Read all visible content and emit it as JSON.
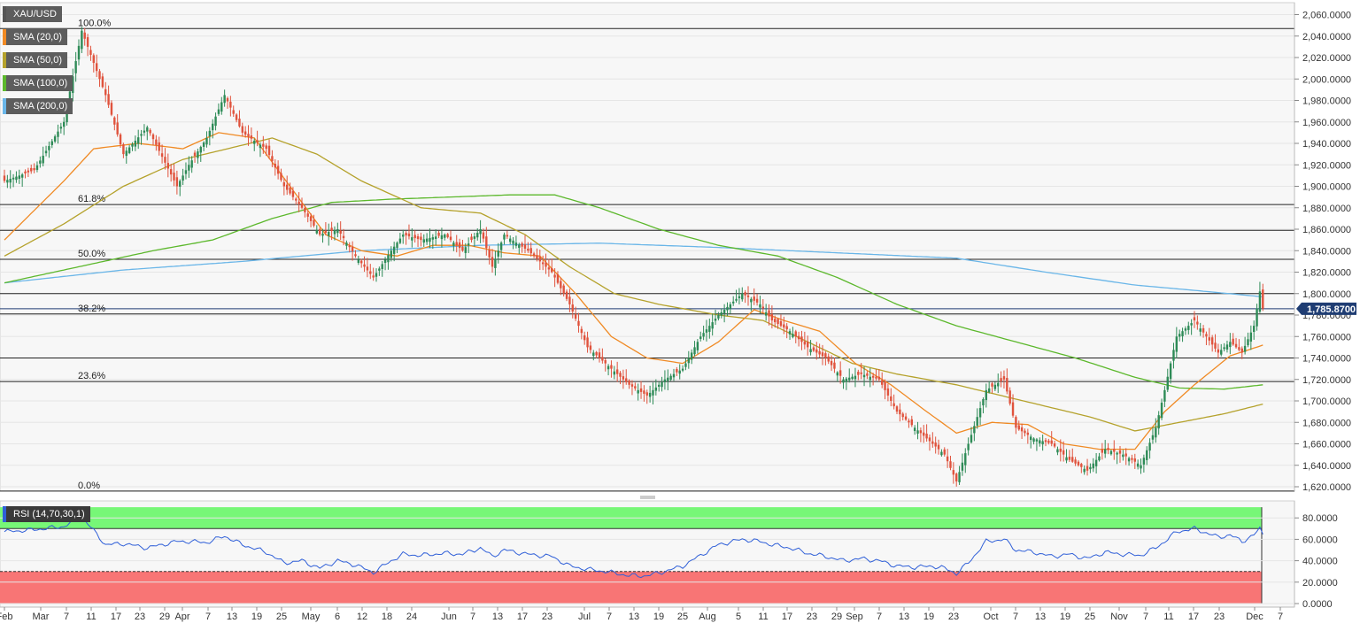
{
  "chart_data": {
    "type": "candlestick",
    "instrument": "XAU/USD",
    "legend": [
      "XAU/USD",
      "SMA (20,0)",
      "SMA (50,0)",
      "SMA (100,0)",
      "SMA (200,0)"
    ],
    "last_price_label": "1,785.8700",
    "last_price": 1785.87,
    "ylim": [
      1610,
      2070
    ],
    "y_ticks": [
      "2,060.0000",
      "2,040.0000",
      "2,020.0000",
      "2,000.0000",
      "1,980.0000",
      "1,960.0000",
      "1,940.0000",
      "1,920.0000",
      "1,900.0000",
      "1,880.0000",
      "1,860.0000",
      "1,840.0000",
      "1,820.0000",
      "1,800.0000",
      "1,780.0000",
      "1,760.0000",
      "1,740.0000",
      "1,720.0000",
      "1,700.0000",
      "1,680.0000",
      "1,660.0000",
      "1,640.0000",
      "1,620.0000"
    ],
    "x_ticks": [
      "Feb",
      "Mar",
      "7",
      "11",
      "17",
      "23",
      "29",
      "Apr",
      "7",
      "13",
      "19",
      "25",
      "May",
      "6",
      "12",
      "18",
      "24",
      "Jun",
      "7",
      "13",
      "17",
      "23",
      "Jul",
      "7",
      "13",
      "19",
      "25",
      "Aug",
      "5",
      "11",
      "17",
      "23",
      "29",
      "Sep",
      "7",
      "13",
      "19",
      "23",
      "Oct",
      "7",
      "13",
      "19",
      "25",
      "Nov",
      "7",
      "11",
      "17",
      "23",
      "Dec",
      "7"
    ],
    "fibonacci": [
      {
        "label": "100.0%",
        "value": 2047
      },
      {
        "label": "61.8%",
        "value": 1883
      },
      {
        "label": "50.0%",
        "value": 1832
      },
      {
        "label": "38.2%",
        "value": 1781
      },
      {
        "label": "23.6%",
        "value": 1718
      },
      {
        "label": "0.0%",
        "value": 1616
      }
    ],
    "horizontal_lines": [
      1859,
      1800,
      1740
    ],
    "close_anchors": [
      [
        0,
        1905
      ],
      [
        10,
        1915
      ],
      [
        20,
        1960
      ],
      [
        26,
        2045
      ],
      [
        34,
        1985
      ],
      [
        40,
        1930
      ],
      [
        48,
        1955
      ],
      [
        58,
        1900
      ],
      [
        62,
        1920
      ],
      [
        68,
        1945
      ],
      [
        74,
        1985
      ],
      [
        80,
        1950
      ],
      [
        88,
        1935
      ],
      [
        94,
        1900
      ],
      [
        100,
        1880
      ],
      [
        106,
        1855
      ],
      [
        112,
        1860
      ],
      [
        118,
        1835
      ],
      [
        124,
        1815
      ],
      [
        130,
        1840
      ],
      [
        134,
        1855
      ],
      [
        140,
        1850
      ],
      [
        148,
        1855
      ],
      [
        154,
        1840
      ],
      [
        160,
        1860
      ],
      [
        164,
        1825
      ],
      [
        168,
        1855
      ],
      [
        176,
        1840
      ],
      [
        184,
        1820
      ],
      [
        190,
        1790
      ],
      [
        196,
        1750
      ],
      [
        202,
        1735
      ],
      [
        210,
        1715
      ],
      [
        216,
        1705
      ],
      [
        222,
        1720
      ],
      [
        228,
        1730
      ],
      [
        234,
        1760
      ],
      [
        240,
        1780
      ],
      [
        248,
        1800
      ],
      [
        254,
        1790
      ],
      [
        258,
        1775
      ],
      [
        264,
        1765
      ],
      [
        270,
        1750
      ],
      [
        276,
        1740
      ],
      [
        282,
        1720
      ],
      [
        288,
        1725
      ],
      [
        294,
        1720
      ],
      [
        300,
        1690
      ],
      [
        306,
        1675
      ],
      [
        312,
        1660
      ],
      [
        316,
        1650
      ],
      [
        320,
        1625
      ],
      [
        324,
        1660
      ],
      [
        330,
        1710
      ],
      [
        336,
        1720
      ],
      [
        340,
        1675
      ],
      [
        346,
        1665
      ],
      [
        352,
        1660
      ],
      [
        358,
        1645
      ],
      [
        364,
        1635
      ],
      [
        370,
        1655
      ],
      [
        376,
        1650
      ],
      [
        382,
        1640
      ],
      [
        387,
        1675
      ],
      [
        390,
        1710
      ],
      [
        394,
        1760
      ],
      [
        400,
        1775
      ],
      [
        404,
        1760
      ],
      [
        408,
        1745
      ],
      [
        412,
        1755
      ],
      [
        416,
        1745
      ],
      [
        420,
        1770
      ],
      [
        422,
        1802
      ],
      [
        423,
        1786
      ]
    ],
    "sma20_anchors": [
      [
        0,
        1850
      ],
      [
        20,
        1905
      ],
      [
        30,
        1935
      ],
      [
        45,
        1940
      ],
      [
        60,
        1935
      ],
      [
        72,
        1950
      ],
      [
        84,
        1945
      ],
      [
        96,
        1900
      ],
      [
        108,
        1855
      ],
      [
        120,
        1840
      ],
      [
        132,
        1835
      ],
      [
        144,
        1845
      ],
      [
        156,
        1845
      ],
      [
        168,
        1838
      ],
      [
        180,
        1835
      ],
      [
        192,
        1800
      ],
      [
        204,
        1760
      ],
      [
        216,
        1740
      ],
      [
        228,
        1735
      ],
      [
        240,
        1755
      ],
      [
        252,
        1785
      ],
      [
        262,
        1775
      ],
      [
        274,
        1765
      ],
      [
        286,
        1735
      ],
      [
        298,
        1715
      ],
      [
        310,
        1690
      ],
      [
        320,
        1670
      ],
      [
        332,
        1680
      ],
      [
        344,
        1678
      ],
      [
        356,
        1660
      ],
      [
        368,
        1655
      ],
      [
        380,
        1655
      ],
      [
        390,
        1690
      ],
      [
        400,
        1715
      ],
      [
        412,
        1742
      ],
      [
        423,
        1752
      ]
    ],
    "sma50_anchors": [
      [
        0,
        1835
      ],
      [
        20,
        1865
      ],
      [
        40,
        1900
      ],
      [
        60,
        1925
      ],
      [
        75,
        1935
      ],
      [
        90,
        1945
      ],
      [
        105,
        1930
      ],
      [
        120,
        1905
      ],
      [
        140,
        1880
      ],
      [
        160,
        1875
      ],
      [
        175,
        1855
      ],
      [
        190,
        1825
      ],
      [
        205,
        1800
      ],
      [
        220,
        1790
      ],
      [
        240,
        1780
      ],
      [
        255,
        1775
      ],
      [
        270,
        1755
      ],
      [
        285,
        1735
      ],
      [
        300,
        1725
      ],
      [
        320,
        1715
      ],
      [
        335,
        1705
      ],
      [
        350,
        1695
      ],
      [
        365,
        1685
      ],
      [
        380,
        1672
      ],
      [
        395,
        1680
      ],
      [
        410,
        1688
      ],
      [
        423,
        1697
      ]
    ],
    "sma100_anchors": [
      [
        0,
        1810
      ],
      [
        25,
        1825
      ],
      [
        50,
        1840
      ],
      [
        70,
        1850
      ],
      [
        90,
        1870
      ],
      [
        110,
        1885
      ],
      [
        130,
        1888
      ],
      [
        150,
        1890
      ],
      [
        170,
        1892
      ],
      [
        185,
        1892
      ],
      [
        200,
        1880
      ],
      [
        220,
        1860
      ],
      [
        240,
        1845
      ],
      [
        260,
        1835
      ],
      [
        280,
        1815
      ],
      [
        300,
        1790
      ],
      [
        320,
        1770
      ],
      [
        340,
        1755
      ],
      [
        360,
        1740
      ],
      [
        380,
        1722
      ],
      [
        395,
        1712
      ],
      [
        410,
        1711
      ],
      [
        423,
        1715
      ]
    ],
    "sma200_anchors": [
      [
        0,
        1810
      ],
      [
        40,
        1822
      ],
      [
        80,
        1830
      ],
      [
        120,
        1840
      ],
      [
        160,
        1845
      ],
      [
        200,
        1847
      ],
      [
        240,
        1843
      ],
      [
        280,
        1838
      ],
      [
        320,
        1833
      ],
      [
        350,
        1820
      ],
      [
        380,
        1808
      ],
      [
        400,
        1803
      ],
      [
        423,
        1797
      ]
    ],
    "rsi": {
      "label": "RSI (14,70,30,1)",
      "overbought": 70,
      "oversold": 30,
      "ylim": [
        0,
        90
      ],
      "y_ticks": [
        "80.0000",
        "60.0000",
        "40.0000",
        "20.0000",
        "0.0000"
      ],
      "anchors": [
        [
          0,
          67
        ],
        [
          10,
          69
        ],
        [
          20,
          72
        ],
        [
          26,
          81
        ],
        [
          34,
          55
        ],
        [
          40,
          56
        ],
        [
          48,
          52
        ],
        [
          58,
          58
        ],
        [
          62,
          58
        ],
        [
          68,
          57
        ],
        [
          74,
          63
        ],
        [
          80,
          55
        ],
        [
          88,
          48
        ],
        [
          94,
          38
        ],
        [
          100,
          40
        ],
        [
          106,
          33
        ],
        [
          112,
          40
        ],
        [
          118,
          36
        ],
        [
          124,
          29
        ],
        [
          130,
          40
        ],
        [
          134,
          46
        ],
        [
          140,
          45
        ],
        [
          148,
          47
        ],
        [
          154,
          46
        ],
        [
          160,
          52
        ],
        [
          164,
          44
        ],
        [
          168,
          50
        ],
        [
          176,
          46
        ],
        [
          184,
          44
        ],
        [
          190,
          35
        ],
        [
          196,
          32
        ],
        [
          202,
          30
        ],
        [
          210,
          26
        ],
        [
          216,
          26
        ],
        [
          222,
          30
        ],
        [
          228,
          35
        ],
        [
          234,
          45
        ],
        [
          240,
          55
        ],
        [
          248,
          60
        ],
        [
          254,
          58
        ],
        [
          258,
          55
        ],
        [
          264,
          52
        ],
        [
          270,
          47
        ],
        [
          276,
          44
        ],
        [
          282,
          40
        ],
        [
          288,
          42
        ],
        [
          294,
          40
        ],
        [
          300,
          35
        ],
        [
          306,
          34
        ],
        [
          312,
          35
        ],
        [
          316,
          33
        ],
        [
          320,
          28
        ],
        [
          324,
          38
        ],
        [
          330,
          58
        ],
        [
          336,
          60
        ],
        [
          340,
          50
        ],
        [
          346,
          48
        ],
        [
          352,
          44
        ],
        [
          358,
          46
        ],
        [
          364,
          42
        ],
        [
          370,
          48
        ],
        [
          376,
          46
        ],
        [
          382,
          45
        ],
        [
          387,
          52
        ],
        [
          390,
          58
        ],
        [
          394,
          67
        ],
        [
          400,
          70
        ],
        [
          404,
          66
        ],
        [
          408,
          62
        ],
        [
          412,
          64
        ],
        [
          416,
          58
        ],
        [
          420,
          64
        ],
        [
          422,
          70
        ],
        [
          423,
          65
        ]
      ]
    }
  },
  "colors": {
    "up": "#26a69a",
    "up_body": "#2e8b57",
    "down": "#e0533d",
    "sma20": "#f08a24",
    "sma50": "#b5a22c",
    "sma100": "#5cb82c",
    "sma200": "#6ab6e8",
    "rsi_line": "#2f5fd8",
    "rsi_overbought_band": "#77f777",
    "rsi_oversold_band": "#f87575",
    "price_label_bg": "#1f3d73"
  }
}
